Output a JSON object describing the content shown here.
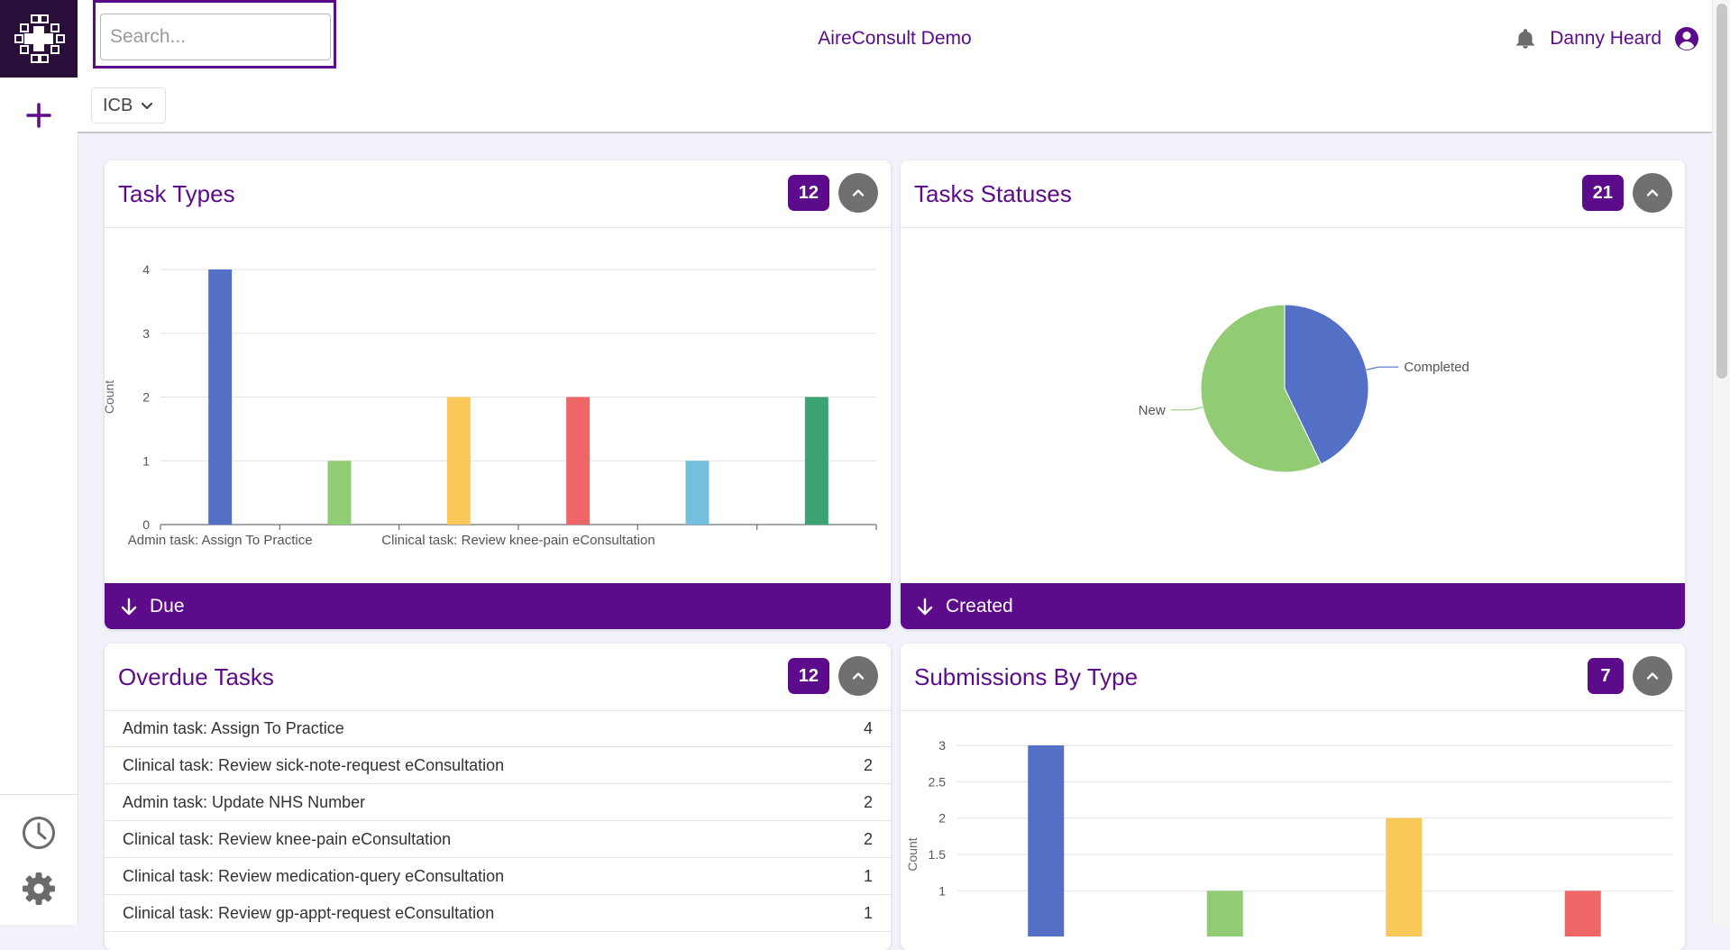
{
  "app": {
    "title": "AireConsult Demo",
    "brand_color": "#5c0b8a"
  },
  "search": {
    "placeholder": "Search..."
  },
  "user": {
    "name": "Danny Heard"
  },
  "icons": {
    "logo": "cross-grid-logo",
    "add": "plus-icon",
    "history": "clock-icon",
    "settings": "gear-icon",
    "notifications": "bell-icon",
    "account": "user-circle-icon"
  },
  "filter": {
    "selected": "ICB"
  },
  "cards": {
    "task_types": {
      "title": "Task Types",
      "count": "12",
      "footer": "Due"
    },
    "task_statuses": {
      "title": "Tasks Statuses",
      "count": "21",
      "footer": "Created"
    },
    "overdue_tasks": {
      "title": "Overdue Tasks",
      "count": "12",
      "rows": [
        {
          "label": "Admin task: Assign To Practice",
          "value": "4"
        },
        {
          "label": "Clinical task: Review sick-note-request eConsultation",
          "value": "2"
        },
        {
          "label": "Admin task: Update NHS Number",
          "value": "2"
        },
        {
          "label": "Clinical task: Review knee-pain eConsultation",
          "value": "2"
        },
        {
          "label": "Clinical task: Review medication-query eConsultation",
          "value": "1"
        },
        {
          "label": "Clinical task: Review gp-appt-request eConsultation",
          "value": "1"
        }
      ]
    },
    "submissions_by_type": {
      "title": "Submissions By Type",
      "count": "7"
    }
  },
  "chart_data": [
    {
      "type": "bar",
      "chart": "task_types",
      "ylabel": "Count",
      "ylim": [
        0,
        4
      ],
      "yticks": [
        "0",
        "1",
        "2",
        "3",
        "4"
      ],
      "xtick_labels": [
        "Admin task: Assign To Practice",
        "Clinical task: Review knee-pain eConsultation"
      ],
      "values": [
        4,
        1,
        2,
        2,
        1,
        2
      ],
      "colors": [
        "#5470c6",
        "#91cc75",
        "#fac858",
        "#ee6666",
        "#73c0de",
        "#3ba272"
      ],
      "grid": true
    },
    {
      "type": "pie",
      "chart": "task_statuses",
      "slices": [
        {
          "name": "Completed",
          "value": 9,
          "color": "#5470c6"
        },
        {
          "name": "New",
          "value": 12,
          "color": "#91cc75"
        }
      ]
    },
    {
      "type": "bar",
      "chart": "submissions_by_type",
      "ylabel": "Count",
      "ylim": [
        0,
        3
      ],
      "yticks": [
        "1",
        "1.5",
        "2",
        "2.5",
        "3"
      ],
      "values": [
        3,
        1,
        2,
        1
      ],
      "colors": [
        "#5470c6",
        "#91cc75",
        "#fac858",
        "#ee6666"
      ],
      "grid": true
    }
  ]
}
